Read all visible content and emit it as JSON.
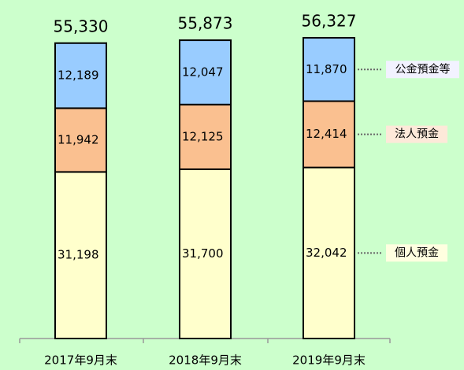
{
  "chart_data": {
    "type": "stacked_bar",
    "categories": [
      "2017年9月末",
      "2018年9月末",
      "2019年9月末"
    ],
    "series": [
      {
        "name": "個人預金",
        "color": "#ffffcc",
        "label_color": "#ffffe0",
        "values": [
          31198,
          31700,
          32042
        ],
        "value_labels": [
          "31,198",
          "31,700",
          "32,042"
        ]
      },
      {
        "name": "法人預金",
        "color": "#fac090",
        "label_color": "#fde9d9",
        "values": [
          11942,
          12125,
          12414
        ],
        "value_labels": [
          "11,942",
          "12,125",
          "12,414"
        ]
      },
      {
        "name": "公金預金等",
        "color": "#99ccff",
        "label_color": "#f2f2ff",
        "values": [
          12189,
          12047,
          11870
        ],
        "value_labels": [
          "12,189",
          "12,047",
          "11,870"
        ]
      }
    ],
    "totals": [
      55330,
      55873,
      56327
    ],
    "total_labels": [
      "55,330",
      "55,873",
      "56,327"
    ]
  }
}
